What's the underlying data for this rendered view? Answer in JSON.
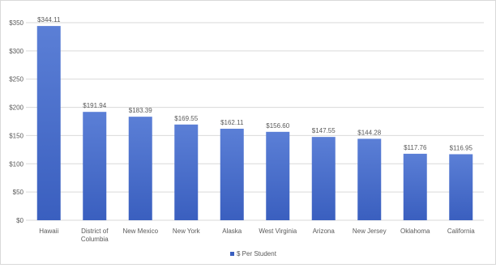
{
  "chart_data": {
    "type": "bar",
    "categories": [
      "Hawaii",
      "District of Columbia",
      "New Mexico",
      "New York",
      "Alaska",
      "West Virginia",
      "Arizona",
      "New Jersey",
      "Oklahoma",
      "California"
    ],
    "category_lines": [
      [
        "Hawaii"
      ],
      [
        "District of",
        "Columbia"
      ],
      [
        "New Mexico"
      ],
      [
        "New York"
      ],
      [
        "Alaska"
      ],
      [
        "West Virginia"
      ],
      [
        "Arizona"
      ],
      [
        "New Jersey"
      ],
      [
        "Oklahoma"
      ],
      [
        "California"
      ]
    ],
    "series": [
      {
        "name": "$ Per Student",
        "values": [
          344.11,
          191.94,
          183.39,
          169.55,
          162.11,
          156.6,
          147.55,
          144.28,
          117.76,
          116.95
        ]
      }
    ],
    "data_labels": [
      "$344.11",
      "$191.94",
      "$183.39",
      "$169.55",
      "$162.11",
      "$156.60",
      "$147.55",
      "$144.28",
      "$117.76",
      "$116.95"
    ],
    "y_ticks": [
      0,
      50,
      100,
      150,
      200,
      250,
      300,
      350
    ],
    "y_tick_labels": [
      "$0",
      "$50",
      "$100",
      "$150",
      "$200",
      "$250",
      "$300",
      "$350"
    ],
    "ylim": [
      0,
      350
    ],
    "grid": true,
    "legend_position": "bottom",
    "title": "",
    "xlabel": "",
    "ylabel": "",
    "colors": {
      "bar_top": "#5b7fd6",
      "bar_bottom": "#3a5fbf",
      "grid": "#d9d9d9",
      "text": "#595959"
    }
  }
}
